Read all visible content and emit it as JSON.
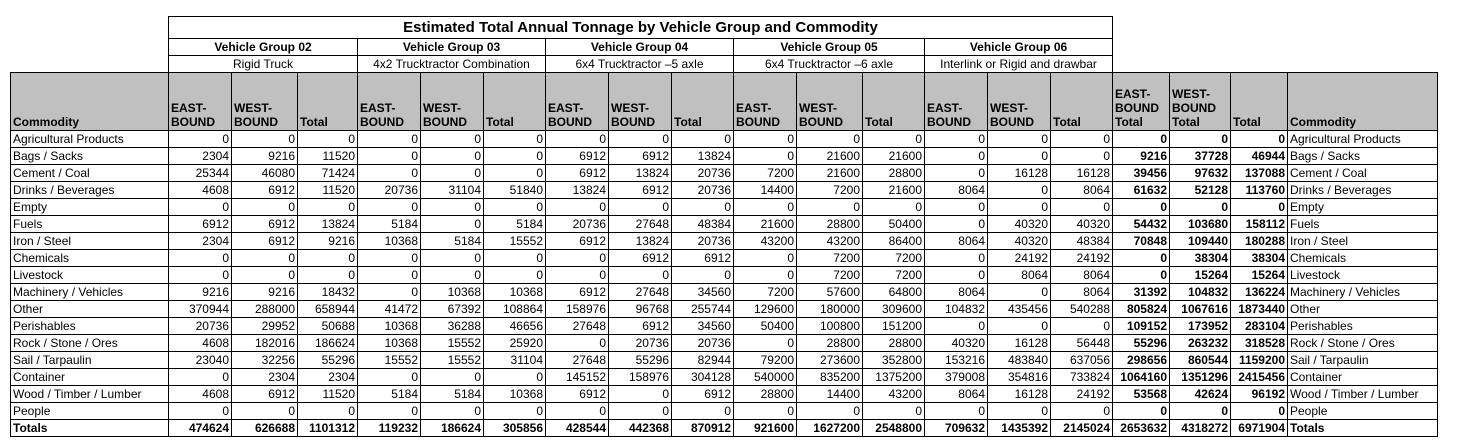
{
  "title": "Estimated Total Annual Tonnage by Vehicle Group and Commodity",
  "groups": [
    {
      "name": "Vehicle Group 02",
      "type": "Rigid Truck"
    },
    {
      "name": "Vehicle Group 03",
      "type": "4x2 Trucktractor Combination"
    },
    {
      "name": "Vehicle Group 04",
      "type": "6x4 Trucktractor –5 axle"
    },
    {
      "name": "Vehicle Group 05",
      "type": "6x4 Trucktractor –6 axle"
    },
    {
      "name": "Vehicle Group 06",
      "type": "Interlink or Rigid and drawbar"
    }
  ],
  "headers": {
    "commodity": "Commodity",
    "eastbound": "EAST-\nBOUND",
    "westbound": "WEST-\nBOUND",
    "total": "Total",
    "eastbound_total": "EAST-\nBOUND\nTotal",
    "westbound_total": "WEST-\nBOUND\nTotal",
    "grand_total": "Total",
    "commodity_right": "Commodity"
  },
  "rows": [
    {
      "label": "Agricultural Products",
      "values": [
        0,
        0,
        0,
        0,
        0,
        0,
        0,
        0,
        0,
        0,
        0,
        0,
        0,
        0,
        0,
        0,
        0,
        0
      ]
    },
    {
      "label": "Bags / Sacks",
      "values": [
        2304,
        9216,
        11520,
        0,
        0,
        0,
        6912,
        6912,
        13824,
        0,
        21600,
        21600,
        0,
        0,
        0,
        9216,
        37728,
        46944
      ]
    },
    {
      "label": "Cement / Coal",
      "values": [
        25344,
        46080,
        71424,
        0,
        0,
        0,
        6912,
        13824,
        20736,
        7200,
        21600,
        28800,
        0,
        16128,
        16128,
        39456,
        97632,
        137088
      ]
    },
    {
      "label": "Drinks / Beverages",
      "values": [
        4608,
        6912,
        11520,
        20736,
        31104,
        51840,
        13824,
        6912,
        20736,
        14400,
        7200,
        21600,
        8064,
        0,
        8064,
        61632,
        52128,
        113760
      ]
    },
    {
      "label": "Empty",
      "values": [
        0,
        0,
        0,
        0,
        0,
        0,
        0,
        0,
        0,
        0,
        0,
        0,
        0,
        0,
        0,
        0,
        0,
        0
      ]
    },
    {
      "label": "Fuels",
      "values": [
        6912,
        6912,
        13824,
        5184,
        0,
        5184,
        20736,
        27648,
        48384,
        21600,
        28800,
        50400,
        0,
        40320,
        40320,
        54432,
        103680,
        158112
      ]
    },
    {
      "label": "Iron / Steel",
      "values": [
        2304,
        6912,
        9216,
        10368,
        5184,
        15552,
        6912,
        13824,
        20736,
        43200,
        43200,
        86400,
        8064,
        40320,
        48384,
        70848,
        109440,
        180288
      ]
    },
    {
      "label": "Chemicals",
      "values": [
        0,
        0,
        0,
        0,
        0,
        0,
        0,
        6912,
        6912,
        0,
        7200,
        7200,
        0,
        24192,
        24192,
        0,
        38304,
        38304
      ]
    },
    {
      "label": "Livestock",
      "values": [
        0,
        0,
        0,
        0,
        0,
        0,
        0,
        0,
        0,
        0,
        7200,
        7200,
        0,
        8064,
        8064,
        0,
        15264,
        15264
      ]
    },
    {
      "label": "Machinery / Vehicles",
      "values": [
        9216,
        9216,
        18432,
        0,
        10368,
        10368,
        6912,
        27648,
        34560,
        7200,
        57600,
        64800,
        8064,
        0,
        8064,
        31392,
        104832,
        136224
      ]
    },
    {
      "label": "Other",
      "values": [
        370944,
        288000,
        658944,
        41472,
        67392,
        108864,
        158976,
        96768,
        255744,
        129600,
        180000,
        309600,
        104832,
        435456,
        540288,
        805824,
        1067616,
        1873440
      ]
    },
    {
      "label": "Perishables",
      "values": [
        20736,
        29952,
        50688,
        10368,
        36288,
        46656,
        27648,
        6912,
        34560,
        50400,
        100800,
        151200,
        0,
        0,
        0,
        109152,
        173952,
        283104
      ]
    },
    {
      "label": "Rock / Stone / Ores",
      "values": [
        4608,
        182016,
        186624,
        10368,
        15552,
        25920,
        0,
        20736,
        20736,
        0,
        28800,
        28800,
        40320,
        16128,
        56448,
        55296,
        263232,
        318528
      ]
    },
    {
      "label": "Sail / Tarpaulin",
      "values": [
        23040,
        32256,
        55296,
        15552,
        15552,
        31104,
        27648,
        55296,
        82944,
        79200,
        273600,
        352800,
        153216,
        483840,
        637056,
        298656,
        860544,
        1159200
      ]
    },
    {
      "label": "Container",
      "values": [
        0,
        2304,
        2304,
        0,
        0,
        0,
        145152,
        158976,
        304128,
        540000,
        835200,
        1375200,
        379008,
        354816,
        733824,
        1064160,
        1351296,
        2415456
      ]
    },
    {
      "label": "Wood / Timber / Lumber",
      "values": [
        4608,
        6912,
        11520,
        5184,
        5184,
        10368,
        6912,
        0,
        6912,
        28800,
        14400,
        43200,
        8064,
        16128,
        24192,
        53568,
        42624,
        96192
      ]
    },
    {
      "label": "People",
      "values": [
        0,
        0,
        0,
        0,
        0,
        0,
        0,
        0,
        0,
        0,
        0,
        0,
        0,
        0,
        0,
        0,
        0,
        0
      ]
    }
  ],
  "totals": {
    "label": "Totals",
    "values": [
      474624,
      626688,
      1101312,
      119232,
      186624,
      305856,
      428544,
      442368,
      870912,
      921600,
      1627200,
      2548800,
      709632,
      1435392,
      2145024,
      2653632,
      4318272,
      6971904
    ]
  }
}
